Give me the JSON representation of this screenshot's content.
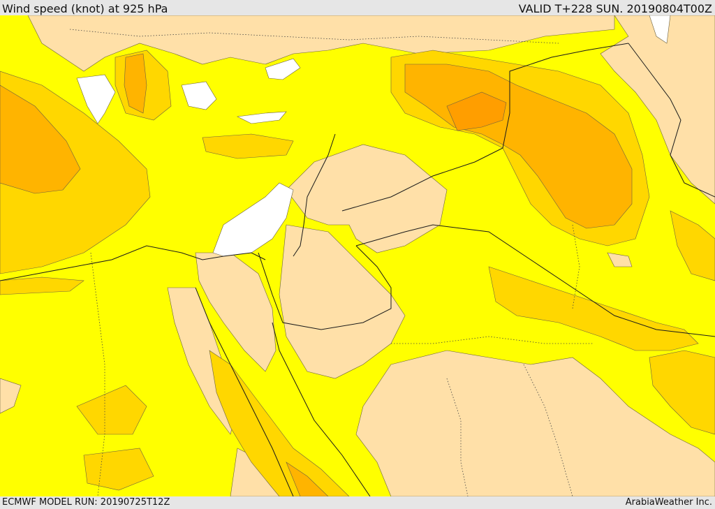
{
  "header": {
    "title": "Wind speed (knot) at 925 hPa",
    "valid": "VALID T+228 SUN. 20190804T00Z"
  },
  "footer": {
    "model_run": "ECMWF MODEL RUN: 20190725T12Z",
    "credit": "ArabiaWeather Inc."
  },
  "colors": {
    "calm": "#ffffff",
    "light": "#ffe0a8",
    "moderate": "#ffff00",
    "fresh": "#ffd700",
    "strong": "#ffb400",
    "very_strong": "#ff9e00",
    "background": "#e6e6e6"
  }
}
